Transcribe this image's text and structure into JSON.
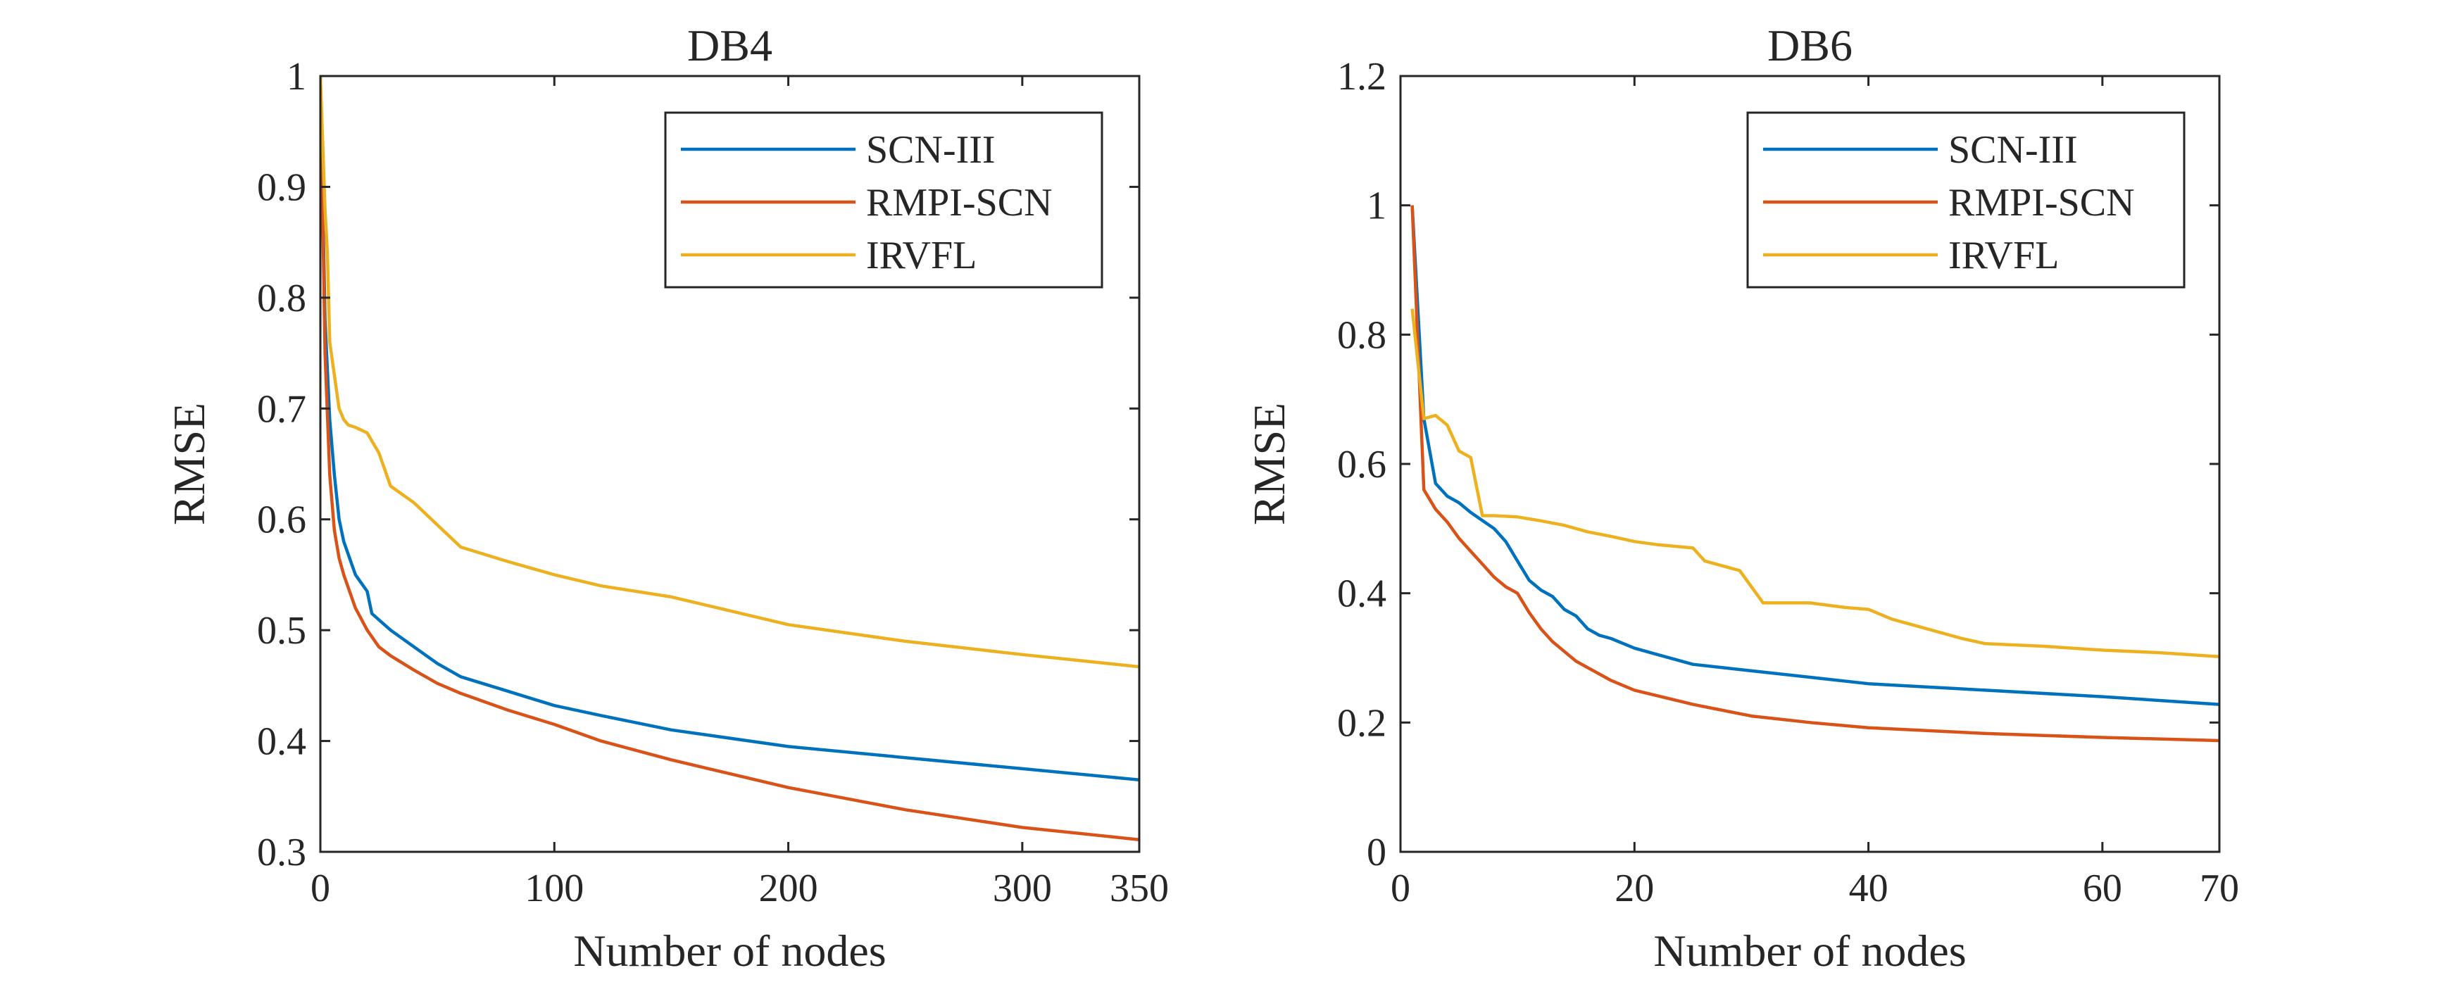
{
  "chart_data": [
    {
      "type": "line",
      "title": "DB4",
      "xlabel": "Number of nodes",
      "ylabel": "RMSE",
      "xlim": [
        0,
        350
      ],
      "ylim": [
        0.3,
        1
      ],
      "xticks": [
        0,
        100,
        200,
        300,
        350
      ],
      "yticks": [
        0.3,
        0.4,
        0.5,
        0.6,
        0.7,
        0.8,
        0.9,
        1
      ],
      "xtick_labels": [
        "0",
        "100",
        "200",
        "300",
        "350"
      ],
      "ytick_labels": [
        "0.3",
        "0.4",
        "0.5",
        "0.6",
        "0.7",
        "0.8",
        "0.9",
        "1"
      ],
      "legend_position": "top-right",
      "series": [
        {
          "name": "SCN-III",
          "color": "#0072BD",
          "x": [
            0,
            2,
            4,
            6,
            8,
            10,
            15,
            20,
            22,
            30,
            40,
            50,
            60,
            80,
            100,
            120,
            150,
            200,
            250,
            300,
            350
          ],
          "y": [
            1.0,
            0.78,
            0.69,
            0.64,
            0.6,
            0.58,
            0.55,
            0.535,
            0.515,
            0.5,
            0.485,
            0.47,
            0.458,
            0.445,
            0.432,
            0.423,
            0.41,
            0.395,
            0.385,
            0.375,
            0.365
          ]
        },
        {
          "name": "RMPI-SCN",
          "color": "#D95319",
          "x": [
            0,
            2,
            4,
            6,
            8,
            10,
            15,
            20,
            25,
            30,
            40,
            50,
            60,
            80,
            100,
            120,
            150,
            200,
            250,
            300,
            350
          ],
          "y": [
            1.0,
            0.75,
            0.64,
            0.59,
            0.565,
            0.55,
            0.52,
            0.5,
            0.485,
            0.477,
            0.464,
            0.452,
            0.443,
            0.428,
            0.415,
            0.4,
            0.383,
            0.358,
            0.338,
            0.322,
            0.311
          ]
        },
        {
          "name": "IRVFL",
          "color": "#EDB120",
          "x": [
            0,
            2,
            3,
            4,
            6,
            8,
            10,
            12,
            15,
            20,
            25,
            30,
            40,
            50,
            60,
            80,
            100,
            120,
            150,
            200,
            250,
            300,
            350
          ],
          "y": [
            1.0,
            0.88,
            0.84,
            0.76,
            0.73,
            0.7,
            0.69,
            0.685,
            0.683,
            0.678,
            0.66,
            0.63,
            0.615,
            0.595,
            0.575,
            0.562,
            0.55,
            0.54,
            0.53,
            0.505,
            0.49,
            0.478,
            0.467
          ]
        }
      ]
    },
    {
      "type": "line",
      "title": "DB6",
      "xlabel": "Number of nodes",
      "ylabel": "RMSE",
      "xlim": [
        0,
        70
      ],
      "ylim": [
        0,
        1.2
      ],
      "xticks": [
        0,
        20,
        40,
        60,
        70
      ],
      "yticks": [
        0,
        0.2,
        0.4,
        0.6,
        0.8,
        1,
        1.2
      ],
      "xtick_labels": [
        "0",
        "20",
        "40",
        "60",
        "70"
      ],
      "ytick_labels": [
        "0",
        "0.2",
        "0.4",
        "0.6",
        "0.8",
        "1",
        "1.2"
      ],
      "legend_position": "top-right",
      "series": [
        {
          "name": "SCN-III",
          "color": "#0072BD",
          "x": [
            1,
            2,
            3,
            4,
            5,
            6,
            8,
            9,
            10,
            11,
            12,
            13,
            14,
            15,
            16,
            17,
            18,
            20,
            22,
            25,
            30,
            35,
            40,
            50,
            60,
            70
          ],
          "y": [
            1.0,
            0.67,
            0.57,
            0.55,
            0.54,
            0.525,
            0.5,
            0.48,
            0.45,
            0.42,
            0.405,
            0.395,
            0.375,
            0.365,
            0.345,
            0.335,
            0.33,
            0.315,
            0.305,
            0.29,
            0.28,
            0.27,
            0.26,
            0.25,
            0.24,
            0.228
          ]
        },
        {
          "name": "RMPI-SCN",
          "color": "#D95319",
          "x": [
            1,
            2,
            3,
            4,
            5,
            6,
            7,
            8,
            9,
            10,
            11,
            12,
            13,
            14,
            15,
            16,
            18,
            20,
            25,
            30,
            35,
            40,
            50,
            60,
            70
          ],
          "y": [
            1.0,
            0.56,
            0.53,
            0.51,
            0.485,
            0.465,
            0.445,
            0.425,
            0.41,
            0.4,
            0.37,
            0.345,
            0.325,
            0.31,
            0.295,
            0.285,
            0.265,
            0.25,
            0.228,
            0.21,
            0.2,
            0.192,
            0.183,
            0.177,
            0.172
          ]
        },
        {
          "name": "IRVFL",
          "color": "#EDB120",
          "x": [
            1,
            2,
            3,
            4,
            5,
            6,
            7,
            8,
            10,
            12,
            14,
            16,
            18,
            20,
            22,
            25,
            26,
            28,
            29,
            30,
            31,
            35,
            38,
            40,
            42,
            45,
            48,
            50,
            55,
            60,
            65,
            70
          ],
          "y": [
            0.84,
            0.67,
            0.675,
            0.66,
            0.62,
            0.61,
            0.52,
            0.52,
            0.518,
            0.512,
            0.505,
            0.495,
            0.488,
            0.48,
            0.475,
            0.47,
            0.45,
            0.44,
            0.435,
            0.41,
            0.385,
            0.385,
            0.378,
            0.375,
            0.36,
            0.345,
            0.33,
            0.322,
            0.318,
            0.312,
            0.308,
            0.302
          ]
        }
      ]
    }
  ]
}
